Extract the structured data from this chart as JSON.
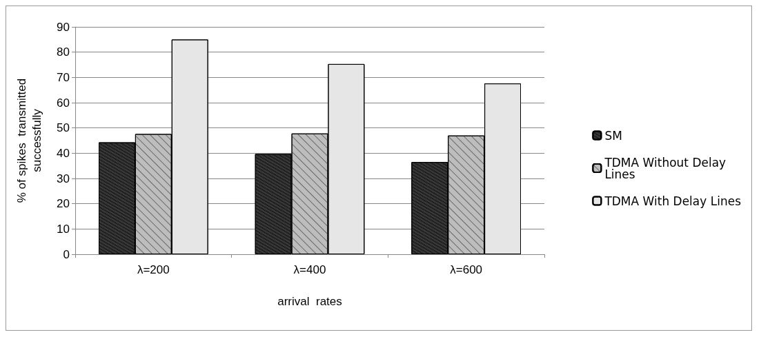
{
  "chart_data": {
    "type": "bar",
    "xlabel": "arrival  rates",
    "ylabel": "% of spikes  transmitted\nsuccessfully",
    "categories": [
      "λ=200",
      "λ=400",
      "λ=600"
    ],
    "series": [
      {
        "name": "SM",
        "color": "#3a3a3a",
        "values": [
          44.3,
          39.7,
          36.5
        ]
      },
      {
        "name": "TDMA Without Delay Lines",
        "color": "#bdbdbd",
        "values": [
          47.6,
          47.8,
          47.0
        ]
      },
      {
        "name": "TDMA With Delay Lines",
        "color": "#e6e6e6",
        "values": [
          85.0,
          75.3,
          67.6
        ]
      }
    ],
    "ylim": [
      0,
      90
    ],
    "yticks": [
      0,
      10,
      20,
      30,
      40,
      50,
      60,
      70,
      80,
      90
    ],
    "grid": "y",
    "legend": "right"
  }
}
